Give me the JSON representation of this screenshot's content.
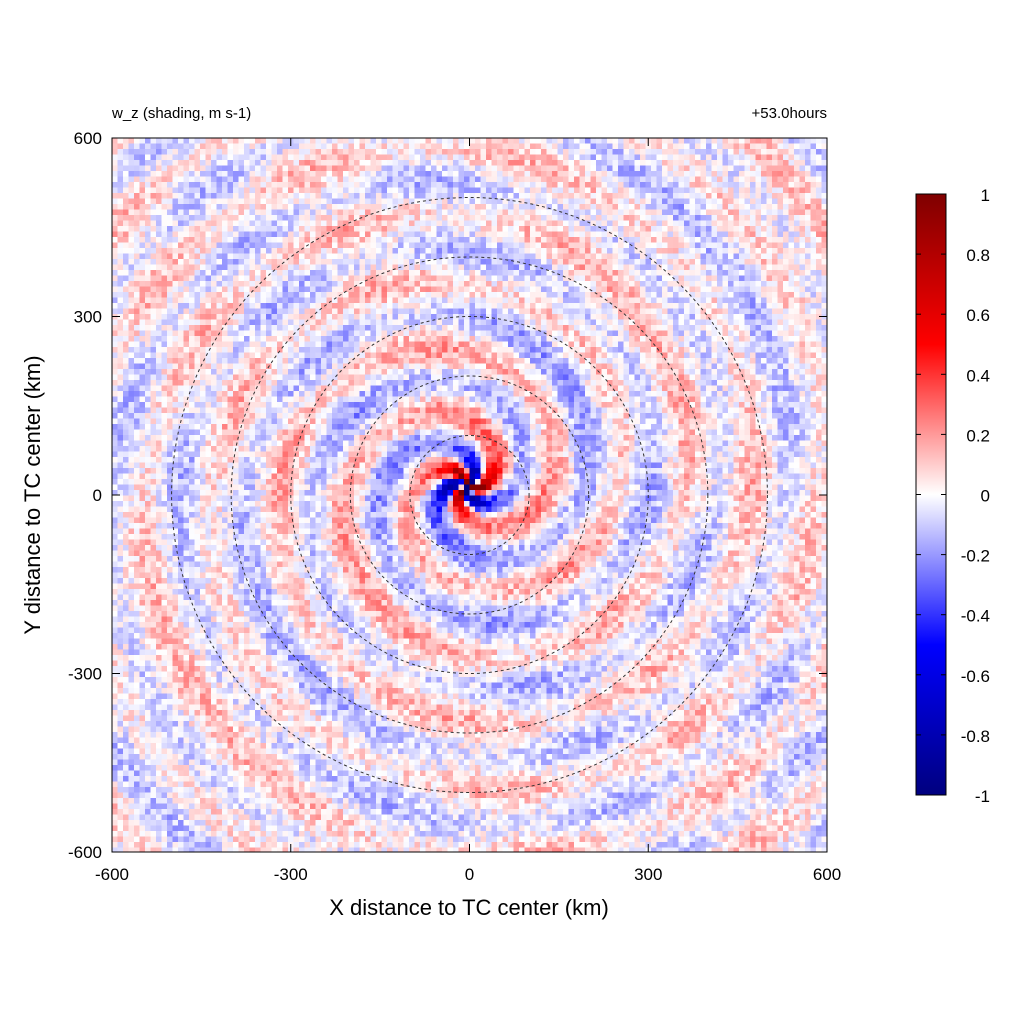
{
  "chart_data": {
    "type": "heatmap",
    "title_left": "w_z (shading, m s-1)",
    "title_right": "+53.0hours",
    "xlabel": "X distance to TC center (km)",
    "ylabel": "Y distance to TC center (km)",
    "xlim": [
      -600,
      600
    ],
    "ylim": [
      -600,
      600
    ],
    "xticks": [
      -600,
      -300,
      0,
      300,
      600
    ],
    "yticks": [
      -600,
      -300,
      0,
      300,
      600
    ],
    "xtick_labels": [
      "-600",
      "-300",
      "0",
      "300",
      "600"
    ],
    "ytick_labels": [
      "-600",
      "-300",
      "0",
      "300",
      "600"
    ],
    "contour_radii_km": [
      100,
      200,
      300,
      400,
      500
    ],
    "contour_style": "dashed",
    "colorbar": {
      "min": -1,
      "max": 1,
      "ticks": [
        1,
        0.8,
        0.6,
        0.4,
        0.2,
        0,
        -0.2,
        -0.4,
        -0.6,
        -0.8,
        -1
      ],
      "tick_labels": [
        "1",
        "0.8",
        "0.6",
        "0.4",
        "0.2",
        "0",
        "-0.2",
        "-0.4",
        "-0.6",
        "-0.8",
        "-1"
      ],
      "colors": [
        "#00007f",
        "#0000ff",
        "#ffffff",
        "#ff0000",
        "#7f0000"
      ]
    },
    "field_description": "spiral banded noisy vertical velocity field, amplitude up to ~1 m s-1 near the center"
  }
}
